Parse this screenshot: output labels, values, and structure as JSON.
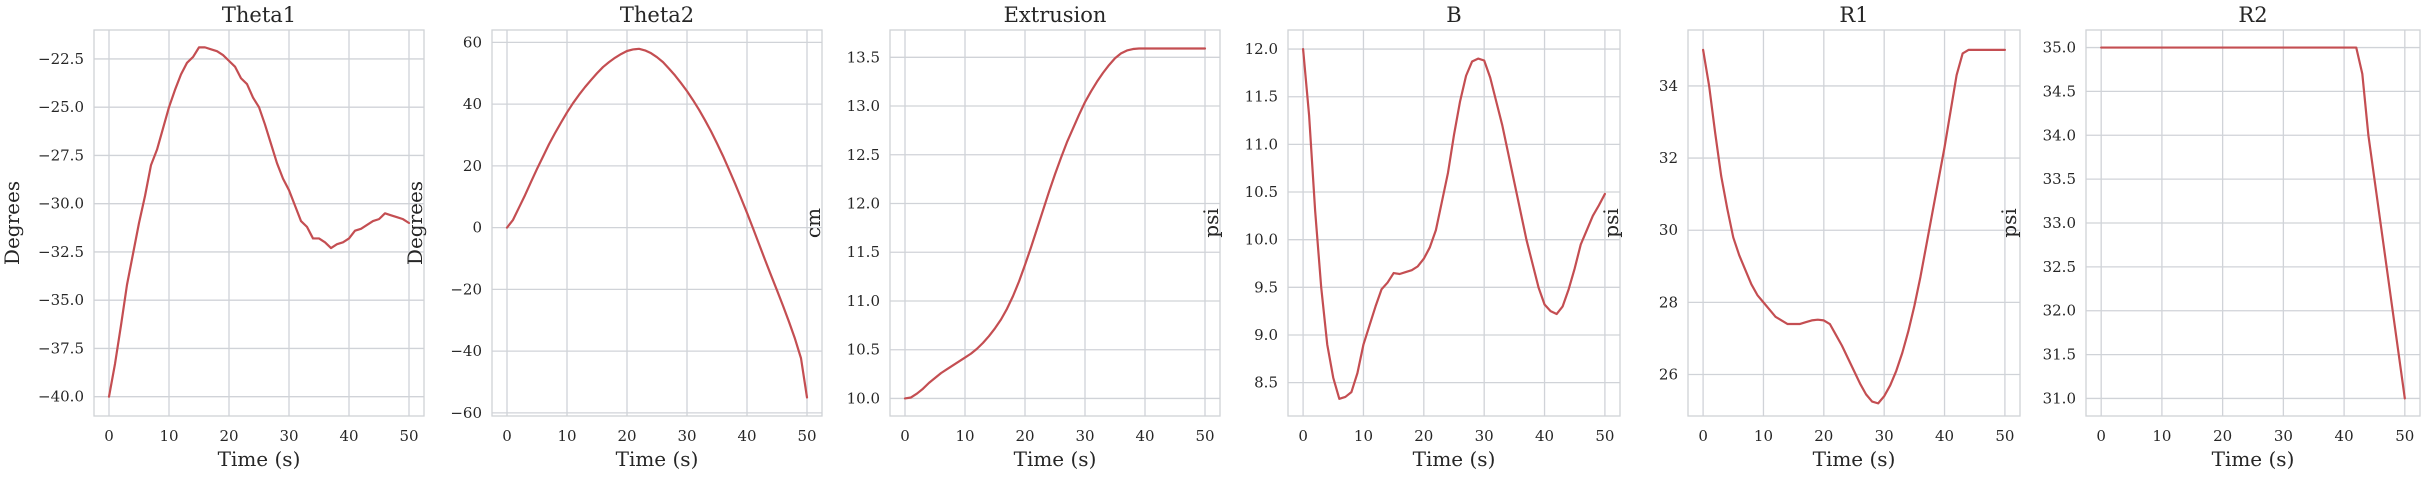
{
  "chart_data": [
    {
      "type": "line",
      "title": "Theta1",
      "xlabel": "Time (s)",
      "ylabel": "Degrees",
      "xlim": [
        -2.5,
        52.5
      ],
      "ylim": [
        -41.0,
        -21.0
      ],
      "xticks": [
        0,
        10,
        20,
        30,
        40,
        50
      ],
      "yticks": [
        -40.0,
        -37.5,
        -35.0,
        -32.5,
        -30.0,
        -27.5,
        -25.0,
        -22.5
      ],
      "ytick_labels": [
        "−40.0",
        "−37.5",
        "−35.0",
        "−32.5",
        "−30.0",
        "−27.5",
        "−25.0",
        "−22.5"
      ],
      "grid": true,
      "color": "#c44e52",
      "series": [
        {
          "x": [
            0,
            1,
            2,
            3,
            4,
            5,
            6,
            7,
            8,
            9,
            10,
            11,
            12,
            13,
            14,
            15,
            16,
            17,
            18,
            19,
            20,
            21,
            22,
            23,
            24,
            25,
            26,
            27,
            28,
            29,
            30,
            31,
            32,
            33,
            34,
            35,
            36,
            37,
            38,
            39,
            40,
            41,
            42,
            43,
            44,
            45,
            46,
            47,
            48,
            49,
            50
          ],
          "y": [
            -40.0,
            -38.3,
            -36.3,
            -34.2,
            -32.6,
            -31.0,
            -29.6,
            -28.0,
            -27.2,
            -26.1,
            -25.0,
            -24.1,
            -23.3,
            -22.7,
            -22.4,
            -21.9,
            -21.9,
            -22.0,
            -22.1,
            -22.3,
            -22.6,
            -22.9,
            -23.5,
            -23.8,
            -24.5,
            -25.0,
            -25.9,
            -26.9,
            -27.9,
            -28.7,
            -29.3,
            -30.1,
            -30.9,
            -31.2,
            -31.8,
            -31.8,
            -32.0,
            -32.3,
            -32.1,
            -32.0,
            -31.8,
            -31.4,
            -31.3,
            -31.1,
            -30.9,
            -30.8,
            -30.5,
            -30.6,
            -30.7,
            -30.8,
            -31.0
          ]
        }
      ]
    },
    {
      "type": "line",
      "title": "Theta2",
      "xlabel": "Time (s)",
      "ylabel": "Degrees",
      "xlim": [
        -2.5,
        52.5
      ],
      "ylim": [
        -61.0,
        64.0
      ],
      "xticks": [
        0,
        10,
        20,
        30,
        40,
        50
      ],
      "yticks": [
        -60,
        -40,
        -20,
        0,
        20,
        40,
        60
      ],
      "ytick_labels": [
        "−60",
        "−40",
        "−20",
        "0",
        "20",
        "40",
        "60"
      ],
      "grid": true,
      "color": "#c44e52",
      "series": [
        {
          "x": [
            0,
            1,
            2,
            3,
            4,
            5,
            6,
            7,
            8,
            9,
            10,
            11,
            12,
            13,
            14,
            15,
            16,
            17,
            18,
            19,
            20,
            21,
            22,
            23,
            24,
            25,
            26,
            27,
            28,
            29,
            30,
            31,
            32,
            33,
            34,
            35,
            36,
            37,
            38,
            39,
            40,
            41,
            42,
            43,
            44,
            45,
            46,
            47,
            48,
            49,
            50
          ],
          "y": [
            0.0,
            2.5,
            6.5,
            10.5,
            14.8,
            19.0,
            23.0,
            27.0,
            30.6,
            34.0,
            37.3,
            40.3,
            43.0,
            45.5,
            47.8,
            50.0,
            52.0,
            53.6,
            55.0,
            56.2,
            57.2,
            57.7,
            57.9,
            57.4,
            56.5,
            55.2,
            53.6,
            51.5,
            49.3,
            46.8,
            44.2,
            41.3,
            38.2,
            34.8,
            31.2,
            27.3,
            23.2,
            18.8,
            14.3,
            9.6,
            4.8,
            -0.2,
            -5.3,
            -10.4,
            -15.4,
            -20.3,
            -25.3,
            -30.5,
            -36.0,
            -42.3,
            -55.0
          ]
        }
      ]
    },
    {
      "type": "line",
      "title": "Extrusion",
      "xlabel": "Time (s)",
      "ylabel": "cm",
      "xlim": [
        -2.5,
        52.5
      ],
      "ylim": [
        9.82,
        13.78
      ],
      "xticks": [
        0,
        10,
        20,
        30,
        40,
        50
      ],
      "yticks": [
        10.0,
        10.5,
        11.0,
        11.5,
        12.0,
        12.5,
        13.0,
        13.5
      ],
      "ytick_labels": [
        "10.0",
        "10.5",
        "11.0",
        "11.5",
        "12.0",
        "12.5",
        "13.0",
        "13.5"
      ],
      "grid": true,
      "color": "#c44e52",
      "series": [
        {
          "x": [
            0,
            1,
            2,
            3,
            4,
            5,
            6,
            7,
            8,
            9,
            10,
            11,
            12,
            13,
            14,
            15,
            16,
            17,
            18,
            19,
            20,
            21,
            22,
            23,
            24,
            25,
            26,
            27,
            28,
            29,
            30,
            31,
            32,
            33,
            34,
            35,
            36,
            37,
            38,
            39,
            40,
            41,
            42,
            43,
            44,
            45,
            46,
            47,
            48,
            49,
            50
          ],
          "y": [
            10.0,
            10.01,
            10.05,
            10.1,
            10.16,
            10.21,
            10.26,
            10.3,
            10.34,
            10.38,
            10.42,
            10.46,
            10.51,
            10.57,
            10.64,
            10.72,
            10.81,
            10.92,
            11.05,
            11.2,
            11.37,
            11.55,
            11.74,
            11.93,
            12.12,
            12.3,
            12.47,
            12.63,
            12.77,
            12.91,
            13.04,
            13.15,
            13.25,
            13.34,
            13.42,
            13.49,
            13.54,
            13.57,
            13.585,
            13.59,
            13.59,
            13.59,
            13.59,
            13.59,
            13.59,
            13.59,
            13.59,
            13.59,
            13.59,
            13.59,
            13.59
          ]
        }
      ]
    },
    {
      "type": "line",
      "title": "B",
      "xlabel": "Time (s)",
      "ylabel": "psi",
      "xlim": [
        -2.5,
        52.5
      ],
      "ylim": [
        8.15,
        12.2
      ],
      "xticks": [
        0,
        10,
        20,
        30,
        40,
        50
      ],
      "yticks": [
        8.5,
        9.0,
        9.5,
        10.0,
        10.5,
        11.0,
        11.5,
        12.0
      ],
      "ytick_labels": [
        "8.5",
        "9.0",
        "9.5",
        "10.0",
        "10.5",
        "11.0",
        "11.5",
        "12.0"
      ],
      "grid": true,
      "color": "#c44e52",
      "series": [
        {
          "x": [
            0,
            1,
            2,
            3,
            4,
            5,
            6,
            7,
            8,
            9,
            10,
            11,
            12,
            13,
            14,
            15,
            16,
            17,
            18,
            19,
            20,
            21,
            22,
            23,
            24,
            25,
            26,
            27,
            28,
            29,
            30,
            31,
            32,
            33,
            34,
            35,
            36,
            37,
            38,
            39,
            40,
            41,
            42,
            43,
            44,
            45,
            46,
            47,
            48,
            49,
            50
          ],
          "y": [
            12.0,
            11.3,
            10.3,
            9.5,
            8.9,
            8.55,
            8.33,
            8.35,
            8.4,
            8.6,
            8.9,
            9.1,
            9.3,
            9.48,
            9.55,
            9.65,
            9.64,
            9.66,
            9.68,
            9.72,
            9.8,
            9.92,
            10.1,
            10.4,
            10.7,
            11.1,
            11.45,
            11.72,
            11.87,
            11.9,
            11.88,
            11.7,
            11.45,
            11.2,
            10.9,
            10.6,
            10.3,
            10.0,
            9.75,
            9.5,
            9.32,
            9.25,
            9.22,
            9.3,
            9.48,
            9.7,
            9.95,
            10.1,
            10.25,
            10.36,
            10.48
          ]
        }
      ]
    },
    {
      "type": "line",
      "title": "R1",
      "xlabel": "Time (s)",
      "ylabel": "psi",
      "xlim": [
        -2.5,
        52.5
      ],
      "ylim": [
        24.85,
        35.55
      ],
      "xticks": [
        0,
        10,
        20,
        30,
        40,
        50
      ],
      "yticks": [
        26,
        28,
        30,
        32,
        34
      ],
      "ytick_labels": [
        "26",
        "28",
        "30",
        "32",
        "34"
      ],
      "grid": true,
      "color": "#c44e52",
      "series": [
        {
          "x": [
            0,
            1,
            2,
            3,
            4,
            5,
            6,
            7,
            8,
            9,
            10,
            11,
            12,
            13,
            14,
            15,
            16,
            17,
            18,
            19,
            20,
            21,
            22,
            23,
            24,
            25,
            26,
            27,
            28,
            29,
            30,
            31,
            32,
            33,
            34,
            35,
            36,
            37,
            38,
            39,
            40,
            41,
            42,
            43,
            44,
            45,
            46,
            47,
            48,
            49,
            50
          ],
          "y": [
            35.0,
            34.0,
            32.7,
            31.5,
            30.6,
            29.8,
            29.3,
            28.9,
            28.5,
            28.2,
            28.0,
            27.8,
            27.6,
            27.5,
            27.4,
            27.4,
            27.4,
            27.45,
            27.5,
            27.52,
            27.5,
            27.4,
            27.1,
            26.8,
            26.45,
            26.1,
            25.75,
            25.45,
            25.25,
            25.2,
            25.4,
            25.7,
            26.1,
            26.6,
            27.2,
            27.9,
            28.7,
            29.6,
            30.5,
            31.4,
            32.3,
            33.3,
            34.3,
            34.9,
            35.0,
            35.0,
            35.0,
            35.0,
            35.0,
            35.0,
            35.0
          ]
        }
      ]
    },
    {
      "type": "line",
      "title": "R2",
      "xlabel": "Time (s)",
      "ylabel": "psi",
      "xlim": [
        -2.5,
        52.5
      ],
      "ylim": [
        30.8,
        35.2
      ],
      "xticks": [
        0,
        10,
        20,
        30,
        40,
        50
      ],
      "yticks": [
        31.0,
        31.5,
        32.0,
        32.5,
        33.0,
        33.5,
        34.0,
        34.5,
        35.0
      ],
      "ytick_labels": [
        "31.0",
        "31.5",
        "32.0",
        "32.5",
        "33.0",
        "33.5",
        "34.0",
        "34.5",
        "35.0"
      ],
      "grid": true,
      "color": "#c44e52",
      "series": [
        {
          "x": [
            0,
            5,
            10,
            15,
            20,
            25,
            30,
            35,
            40,
            42,
            43,
            44,
            45,
            46,
            47,
            48,
            49,
            50
          ],
          "y": [
            35.0,
            35.0,
            35.0,
            35.0,
            35.0,
            35.0,
            35.0,
            35.0,
            35.0,
            35.0,
            34.7,
            34.0,
            33.5,
            33.0,
            32.5,
            32.0,
            31.5,
            31.0
          ]
        }
      ]
    }
  ]
}
